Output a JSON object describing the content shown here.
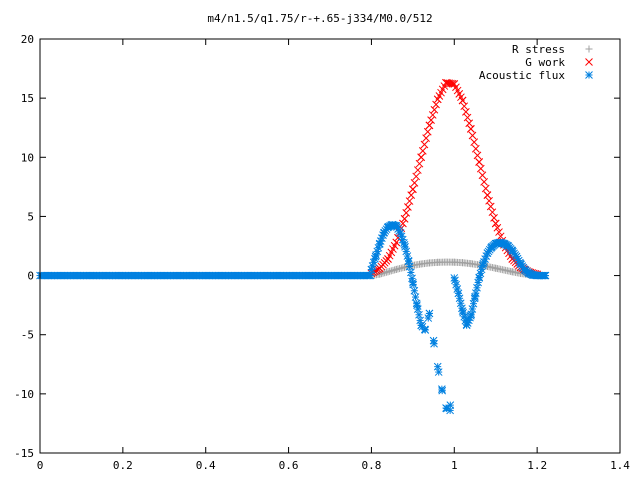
{
  "chart_data": {
    "type": "scatter",
    "title": "m4/n1.5/q1.75/r-+.65-j334/M0.0/512",
    "xlabel": "",
    "ylabel": "",
    "xlim": [
      0,
      1.4
    ],
    "ylim": [
      -15,
      20
    ],
    "xticks": [
      0,
      0.2,
      0.4,
      0.6,
      0.8,
      1,
      1.2,
      1.4
    ],
    "xtick_labels": [
      "0",
      "0.2",
      "0.4",
      "0.6",
      "0.8",
      "1",
      "1.2",
      "1.4"
    ],
    "yticks": [
      -15,
      -10,
      -5,
      0,
      5,
      10,
      15,
      20
    ],
    "ytick_labels": [
      "-15",
      "-10",
      "-5",
      "0",
      "5",
      "10",
      "15",
      "20"
    ],
    "grid": false,
    "legend_position": "top-right",
    "series": [
      {
        "name": "R stress",
        "marker": "plus",
        "color": "#a0a0a0",
        "x": [
          0.8,
          0.82,
          0.84,
          0.86,
          0.88,
          0.9,
          0.92,
          0.94,
          0.96,
          0.98,
          1.0,
          1.02,
          1.04,
          1.06,
          1.08,
          1.1,
          1.12,
          1.14,
          1.16,
          1.18,
          1.2,
          1.22
        ],
        "y": [
          0.0,
          0.12,
          0.32,
          0.52,
          0.7,
          0.86,
          0.98,
          1.07,
          1.12,
          1.14,
          1.13,
          1.09,
          1.01,
          0.9,
          0.77,
          0.62,
          0.47,
          0.32,
          0.18,
          0.08,
          0.02,
          0.0
        ]
      },
      {
        "name": "G work",
        "marker": "cross",
        "color": "#ff0000",
        "x": [
          0.8,
          0.82,
          0.84,
          0.86,
          0.88,
          0.9,
          0.92,
          0.94,
          0.96,
          0.98,
          1.0,
          1.02,
          1.04,
          1.06,
          1.08,
          1.1,
          1.12,
          1.14,
          1.16,
          1.18,
          1.2
        ],
        "y": [
          0.2,
          0.6,
          1.4,
          2.8,
          4.8,
          7.3,
          10.0,
          12.7,
          14.9,
          16.3,
          16.2,
          14.8,
          12.4,
          9.6,
          6.8,
          4.4,
          2.6,
          1.4,
          0.7,
          0.3,
          0.1
        ]
      },
      {
        "name": "Acoustic flux",
        "marker": "star",
        "color": "#0080e0",
        "x": [
          0.8,
          0.81,
          0.82,
          0.83,
          0.84,
          0.85,
          0.86,
          0.87,
          0.88,
          0.89,
          0.9,
          0.91,
          0.92,
          0.93,
          0.94,
          0.95,
          0.96,
          0.97,
          0.98,
          0.99,
          1.0,
          1.01,
          1.02,
          1.03,
          1.04,
          1.05,
          1.06,
          1.07,
          1.08,
          1.09,
          1.1,
          1.11,
          1.12,
          1.13,
          1.14,
          1.15,
          1.16,
          1.17,
          1.18,
          1.19,
          1.2,
          1.21,
          1.22
        ],
        "y": [
          0.5,
          1.6,
          2.7,
          3.6,
          4.1,
          4.3,
          4.2,
          3.6,
          2.6,
          1.2,
          -0.6,
          -2.5,
          -4.2,
          -4.6,
          -3.2,
          -5.5,
          -7.7,
          -9.6,
          -11.2,
          -11.4,
          -0.2,
          -1.5,
          -3.0,
          -4.2,
          -3.4,
          -1.8,
          -0.2,
          1.0,
          1.9,
          2.4,
          2.7,
          2.8,
          2.7,
          2.5,
          2.1,
          1.6,
          1.0,
          0.5,
          0.2,
          0.05,
          0.0,
          0.0,
          0.0
        ]
      }
    ]
  }
}
